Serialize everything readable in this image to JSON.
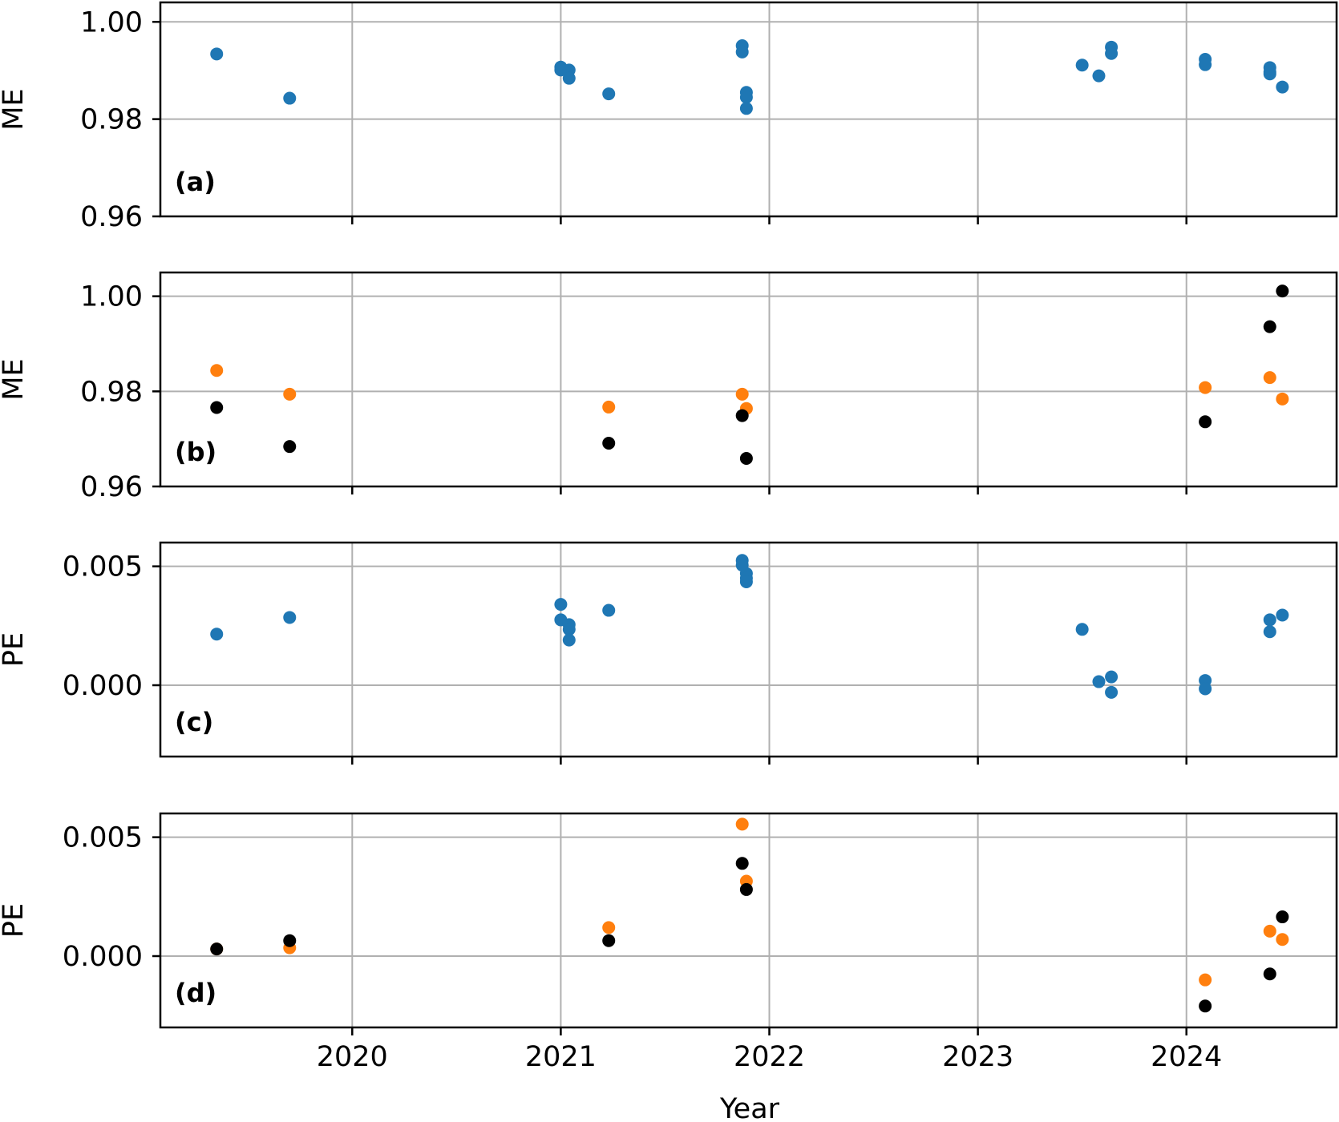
{
  "figure": {
    "xlabel": "Year",
    "x_ticks": [
      "2020",
      "2021",
      "2022",
      "2023",
      "2024"
    ]
  },
  "colors": {
    "blue": "#1f77b4",
    "orange": "#ff7f0e",
    "black": "#000000"
  },
  "chart_data": [
    {
      "type": "scatter",
      "panel_label": "(a)",
      "ylabel": "ME",
      "xlim": [
        2019.08,
        2024.72
      ],
      "ylim": [
        0.96,
        1.004
      ],
      "y_ticks": [
        "0.96",
        "0.98",
        "1.00"
      ],
      "y_tick_values": [
        0.96,
        0.98,
        1.0
      ],
      "grid": true,
      "series": [
        {
          "color": "blue",
          "points": [
            {
              "x": 2019.35,
              "y": 0.9934
            },
            {
              "x": 2019.7,
              "y": 0.9843
            },
            {
              "x": 2021.0,
              "y": 0.9907
            },
            {
              "x": 2021.0,
              "y": 0.9901
            },
            {
              "x": 2021.04,
              "y": 0.9901
            },
            {
              "x": 2021.04,
              "y": 0.9884
            },
            {
              "x": 2021.23,
              "y": 0.9852
            },
            {
              "x": 2021.87,
              "y": 0.9951
            },
            {
              "x": 2021.87,
              "y": 0.9938
            },
            {
              "x": 2021.89,
              "y": 0.9855
            },
            {
              "x": 2021.89,
              "y": 0.9845
            },
            {
              "x": 2021.89,
              "y": 0.9822
            },
            {
              "x": 2023.5,
              "y": 0.9911
            },
            {
              "x": 2023.58,
              "y": 0.9889
            },
            {
              "x": 2023.64,
              "y": 0.9948
            },
            {
              "x": 2023.64,
              "y": 0.9935
            },
            {
              "x": 2024.09,
              "y": 0.9923
            },
            {
              "x": 2024.09,
              "y": 0.9912
            },
            {
              "x": 2024.4,
              "y": 0.9906
            },
            {
              "x": 2024.4,
              "y": 0.9897
            },
            {
              "x": 2024.4,
              "y": 0.9893
            },
            {
              "x": 2024.46,
              "y": 0.9866
            }
          ]
        }
      ]
    },
    {
      "type": "scatter",
      "panel_label": "(b)",
      "ylabel": "ME",
      "xlim": [
        2019.08,
        2024.72
      ],
      "ylim": [
        0.96,
        1.005
      ],
      "y_ticks": [
        "0.96",
        "0.98",
        "1.00"
      ],
      "y_tick_values": [
        0.96,
        0.98,
        1.0
      ],
      "grid": true,
      "series": [
        {
          "color": "orange",
          "points": [
            {
              "x": 2019.35,
              "y": 0.9844
            },
            {
              "x": 2019.7,
              "y": 0.9794
            },
            {
              "x": 2021.23,
              "y": 0.9767
            },
            {
              "x": 2021.87,
              "y": 0.9794
            },
            {
              "x": 2021.89,
              "y": 0.9764
            },
            {
              "x": 2024.09,
              "y": 0.9808
            },
            {
              "x": 2024.4,
              "y": 0.9829
            },
            {
              "x": 2024.46,
              "y": 0.9784
            }
          ]
        },
        {
          "color": "black",
          "points": [
            {
              "x": 2019.35,
              "y": 0.9766
            },
            {
              "x": 2019.7,
              "y": 0.9684
            },
            {
              "x": 2021.23,
              "y": 0.9691
            },
            {
              "x": 2021.87,
              "y": 0.9749
            },
            {
              "x": 2021.89,
              "y": 0.9659
            },
            {
              "x": 2024.09,
              "y": 0.9736
            },
            {
              "x": 2024.4,
              "y": 0.9936
            },
            {
              "x": 2024.46,
              "y": 1.0011
            }
          ]
        }
      ]
    },
    {
      "type": "scatter",
      "panel_label": "(c)",
      "ylabel": "PE",
      "xlim": [
        2019.08,
        2024.72
      ],
      "ylim": [
        -0.003,
        0.006
      ],
      "y_ticks": [
        "0.000",
        "0.005"
      ],
      "y_tick_values": [
        0.0,
        0.005
      ],
      "grid": true,
      "series": [
        {
          "color": "blue",
          "points": [
            {
              "x": 2019.35,
              "y": 0.00215
            },
            {
              "x": 2019.7,
              "y": 0.00285
            },
            {
              "x": 2021.0,
              "y": 0.0034
            },
            {
              "x": 2021.0,
              "y": 0.00275
            },
            {
              "x": 2021.04,
              "y": 0.00255
            },
            {
              "x": 2021.04,
              "y": 0.00235
            },
            {
              "x": 2021.04,
              "y": 0.0019
            },
            {
              "x": 2021.23,
              "y": 0.00315
            },
            {
              "x": 2021.87,
              "y": 0.00525
            },
            {
              "x": 2021.87,
              "y": 0.00505
            },
            {
              "x": 2021.89,
              "y": 0.0047
            },
            {
              "x": 2021.89,
              "y": 0.0045
            },
            {
              "x": 2021.89,
              "y": 0.00435
            },
            {
              "x": 2023.5,
              "y": 0.00235
            },
            {
              "x": 2023.58,
              "y": 0.00015
            },
            {
              "x": 2023.64,
              "y": 0.00035
            },
            {
              "x": 2023.64,
              "y": -0.0003
            },
            {
              "x": 2024.09,
              "y": 0.0002
            },
            {
              "x": 2024.09,
              "y": -0.00015
            },
            {
              "x": 2024.4,
              "y": 0.00275
            },
            {
              "x": 2024.4,
              "y": 0.00225
            },
            {
              "x": 2024.46,
              "y": 0.00295
            }
          ]
        }
      ]
    },
    {
      "type": "scatter",
      "panel_label": "(d)",
      "ylabel": "PE",
      "xlim": [
        2019.08,
        2024.72
      ],
      "ylim": [
        -0.003,
        0.006
      ],
      "y_ticks": [
        "0.000",
        "0.005"
      ],
      "y_tick_values": [
        0.0,
        0.005
      ],
      "grid": true,
      "series": [
        {
          "color": "orange",
          "points": [
            {
              "x": 2019.35,
              "y": 0.0003
            },
            {
              "x": 2019.7,
              "y": 0.00035
            },
            {
              "x": 2021.23,
              "y": 0.0012
            },
            {
              "x": 2021.87,
              "y": 0.00555
            },
            {
              "x": 2021.89,
              "y": 0.00315
            },
            {
              "x": 2024.09,
              "y": -0.001
            },
            {
              "x": 2024.4,
              "y": 0.00105
            },
            {
              "x": 2024.46,
              "y": 0.0007
            }
          ]
        },
        {
          "color": "black",
          "points": [
            {
              "x": 2019.35,
              "y": 0.0003
            },
            {
              "x": 2019.7,
              "y": 0.00065
            },
            {
              "x": 2021.23,
              "y": 0.00065
            },
            {
              "x": 2021.87,
              "y": 0.0039
            },
            {
              "x": 2021.89,
              "y": 0.0028
            },
            {
              "x": 2024.09,
              "y": -0.0021
            },
            {
              "x": 2024.4,
              "y": -0.00075
            },
            {
              "x": 2024.46,
              "y": 0.00165
            }
          ]
        }
      ]
    }
  ]
}
